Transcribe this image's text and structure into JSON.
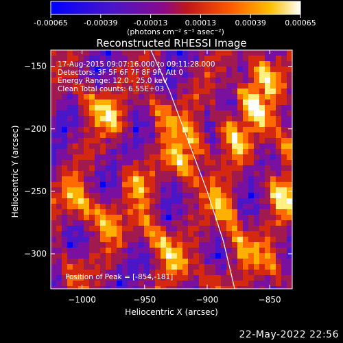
{
  "figure": {
    "title": "Reconstructed RHESSI Image",
    "footer_date": "22-May-2022 22:56"
  },
  "colorbar": {
    "ticks": [
      "-0.00065",
      "-0.00039",
      "-0.00013",
      "0.00013",
      "0.00039",
      "0.00065"
    ],
    "unit_label": "(photons cm⁻² s⁻¹ asec⁻²)",
    "range": [
      -0.00065,
      0.00065
    ]
  },
  "info": {
    "time_line": "17-Aug-2015 09:07:16.000 to 09:11:28.000",
    "detectors_line": "Detectors: 3F 5F 6F 7F 8F 9F, Att 0",
    "energy_line": "Energy Range: 12.0 - 25.0 keV",
    "clean_line": "Clean    Total counts: 6.55E+03",
    "peak_line": "Position of Peak = [-854,-181]"
  },
  "chart_data": {
    "type": "heatmap",
    "title": "Reconstructed RHESSI Image",
    "xlabel": "Heliocentric X (arcsec)",
    "ylabel": "Heliocentric Y (arcsec)",
    "xlim": [
      -1025,
      -832
    ],
    "ylim": [
      -328,
      -137
    ],
    "x_ticks": [
      -1000,
      -950,
      -900,
      -850
    ],
    "y_ticks": [
      -150,
      -200,
      -250,
      -300
    ],
    "colorscale": [
      "#0000ff",
      "#4b16c8",
      "#7a10a0",
      "#a01a50",
      "#d42810",
      "#ff6a00",
      "#ffb000",
      "#fff080",
      "#ffffff"
    ],
    "limb_curve": [
      [
        -945,
        -137
      ],
      [
        -930,
        -170
      ],
      [
        -915,
        -210
      ],
      [
        -900,
        -250
      ],
      [
        -887,
        -290
      ],
      [
        -878,
        -328
      ]
    ],
    "stripe_direction_deg": -60,
    "peak": [
      -854,
      -181
    ]
  }
}
